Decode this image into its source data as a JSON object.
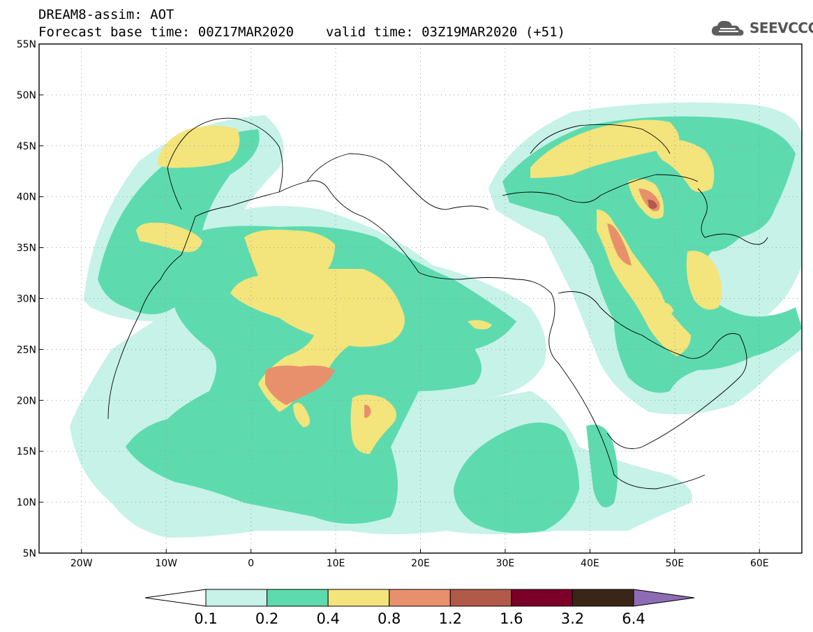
{
  "title": {
    "line1": "DREAM8-assim: AOT",
    "line2_base": "Forecast base time: 00Z17MAR2020",
    "line2_valid": "valid time: 03Z19MAR2020 (+51)"
  },
  "logo": {
    "text": "SEEVCCC",
    "icon": "cloud-icon"
  },
  "map": {
    "projection": "equirectangular",
    "lon_range": [
      -25,
      65
    ],
    "lat_range": [
      5,
      55
    ],
    "lon_ticks": [
      {
        "value": -20,
        "label": "20W"
      },
      {
        "value": -10,
        "label": "10W"
      },
      {
        "value": 0,
        "label": "0"
      },
      {
        "value": 10,
        "label": "10E"
      },
      {
        "value": 20,
        "label": "20E"
      },
      {
        "value": 30,
        "label": "30E"
      },
      {
        "value": 40,
        "label": "40E"
      },
      {
        "value": 50,
        "label": "50E"
      },
      {
        "value": 60,
        "label": "60E"
      }
    ],
    "lat_ticks": [
      {
        "value": 55,
        "label": "55N"
      },
      {
        "value": 50,
        "label": "50N"
      },
      {
        "value": 45,
        "label": "45N"
      },
      {
        "value": 40,
        "label": "40N"
      },
      {
        "value": 35,
        "label": "35N"
      },
      {
        "value": 30,
        "label": "30N"
      },
      {
        "value": 25,
        "label": "25N"
      },
      {
        "value": 20,
        "label": "20N"
      },
      {
        "value": 15,
        "label": "15N"
      },
      {
        "value": 10,
        "label": "10N"
      },
      {
        "value": 5,
        "label": "5N"
      }
    ],
    "grid": "dotted"
  },
  "colorbar": {
    "labels": [
      "0.1",
      "0.2",
      "0.4",
      "0.8",
      "1.2",
      "1.6",
      "3.2",
      "6.4"
    ],
    "colors": [
      "#ffffff",
      "#c6f2e8",
      "#5ddbae",
      "#f4e47c",
      "#e8906c",
      "#b25a4a",
      "#7a0028",
      "#3a2616",
      "#8e6cb4"
    ]
  }
}
